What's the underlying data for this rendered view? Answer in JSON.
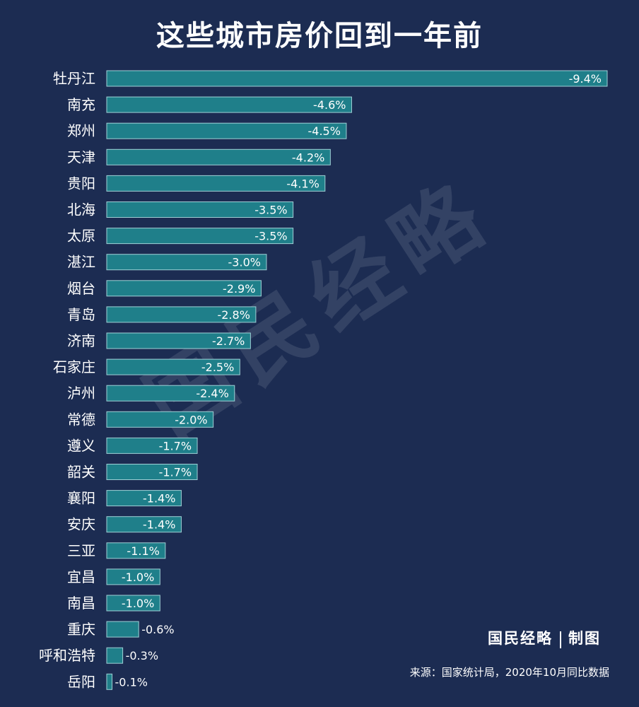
{
  "title": "这些城市房价回到一年前",
  "watermark": "国民经略",
  "credit": {
    "brand": "国民经略",
    "made": "制图"
  },
  "source": "来源：国家统计局，2020年10月同比数据",
  "colors": {
    "background": "#1c2c52",
    "bar": "#1f7f8a",
    "bar_border": "#9fd0d6",
    "text": "#ffffff"
  },
  "chart_data": {
    "type": "bar",
    "orientation": "horizontal",
    "title": "这些城市房价回到一年前",
    "categories": [
      "牡丹江",
      "南充",
      "郑州",
      "天津",
      "贵阳",
      "北海",
      "太原",
      "湛江",
      "烟台",
      "青岛",
      "济南",
      "石家庄",
      "泸州",
      "常德",
      "遵义",
      "韶关",
      "襄阳",
      "安庆",
      "三亚",
      "宜昌",
      "南昌",
      "重庆",
      "呼和浩特",
      "岳阳"
    ],
    "values": [
      -9.4,
      -4.6,
      -4.5,
      -4.2,
      -4.1,
      -3.5,
      -3.5,
      -3.0,
      -2.9,
      -2.8,
      -2.7,
      -2.5,
      -2.4,
      -2.0,
      -1.7,
      -1.7,
      -1.4,
      -1.4,
      -1.1,
      -1.0,
      -1.0,
      -0.6,
      -0.3,
      -0.1
    ],
    "labels": [
      "-9.4%",
      "-4.6%",
      "-4.5%",
      "-4.2%",
      "-4.1%",
      "-3.5%",
      "-3.5%",
      "-3.0%",
      "-2.9%",
      "-2.8%",
      "-2.7%",
      "-2.5%",
      "-2.4%",
      "-2.0%",
      "-1.7%",
      "-1.7%",
      "-1.4%",
      "-1.4%",
      "-1.1%",
      "-1.0%",
      "-1.0%",
      "-0.6%",
      "-0.3%",
      "-0.1%"
    ],
    "xlabel": "",
    "ylabel": "",
    "grid": false,
    "legend": "none"
  }
}
